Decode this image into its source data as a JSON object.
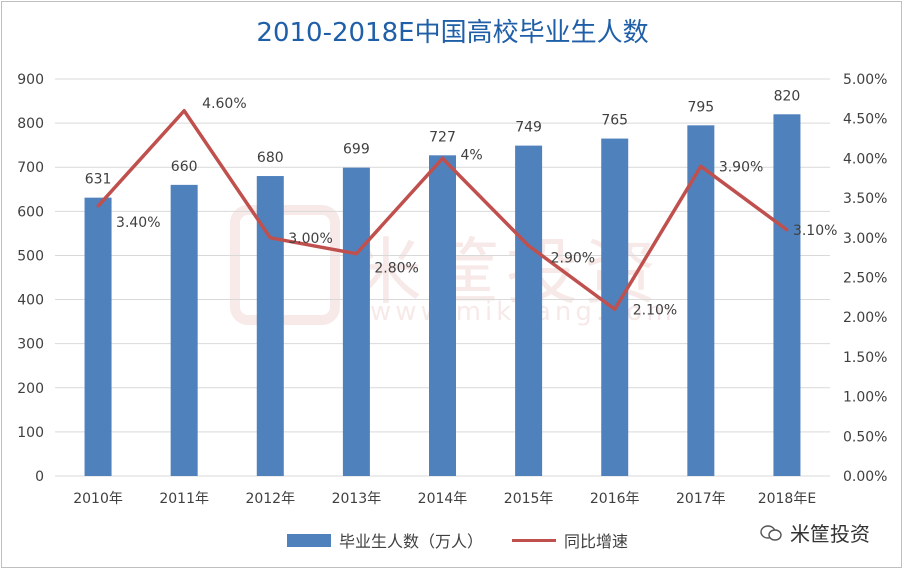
{
  "title": "2010-2018E中国高校毕业生人数",
  "watermark": {
    "text": "米筐投资",
    "url": "www.mikuang.com"
  },
  "brand": {
    "name": "米筐投资",
    "icon": "wechat-icon"
  },
  "colors": {
    "bar": "#4f81bd",
    "line": "#c0504d",
    "title": "#1f5fa8",
    "grid": "#d9d9d9"
  },
  "chart_data": {
    "type": "bar",
    "title": "2010-2018E中国高校毕业生人数",
    "categories": [
      "2010年",
      "2011年",
      "2012年",
      "2013年",
      "2014年",
      "2015年",
      "2016年",
      "2017年",
      "2018年E"
    ],
    "series": [
      {
        "name": "毕业生人数（万人）",
        "type": "bar",
        "axis": "left",
        "values": [
          631,
          660,
          680,
          699,
          727,
          749,
          765,
          795,
          820
        ],
        "labels": [
          "631",
          "660",
          "680",
          "699",
          "727",
          "749",
          "765",
          "795",
          "820"
        ]
      },
      {
        "name": "同比增速",
        "type": "line",
        "axis": "right",
        "values": [
          3.4,
          4.6,
          3.0,
          2.8,
          4.0,
          2.9,
          2.1,
          3.9,
          3.1
        ],
        "labels": [
          "3.40%",
          "4.60%",
          "3.00%",
          "2.80%",
          "4%",
          "2.90%",
          "2.10%",
          "3.90%",
          "3.10%"
        ]
      }
    ],
    "y_left": {
      "min": 0,
      "max": 900,
      "ticks": [
        "0",
        "100",
        "200",
        "300",
        "400",
        "500",
        "600",
        "700",
        "800",
        "900"
      ]
    },
    "y_right": {
      "min": 0,
      "max": 5,
      "ticks": [
        "0.00%",
        "0.50%",
        "1.00%",
        "1.50%",
        "2.00%",
        "2.50%",
        "3.00%",
        "3.50%",
        "4.00%",
        "4.50%",
        "5.00%"
      ]
    },
    "grid": true,
    "legend": "bottom"
  }
}
